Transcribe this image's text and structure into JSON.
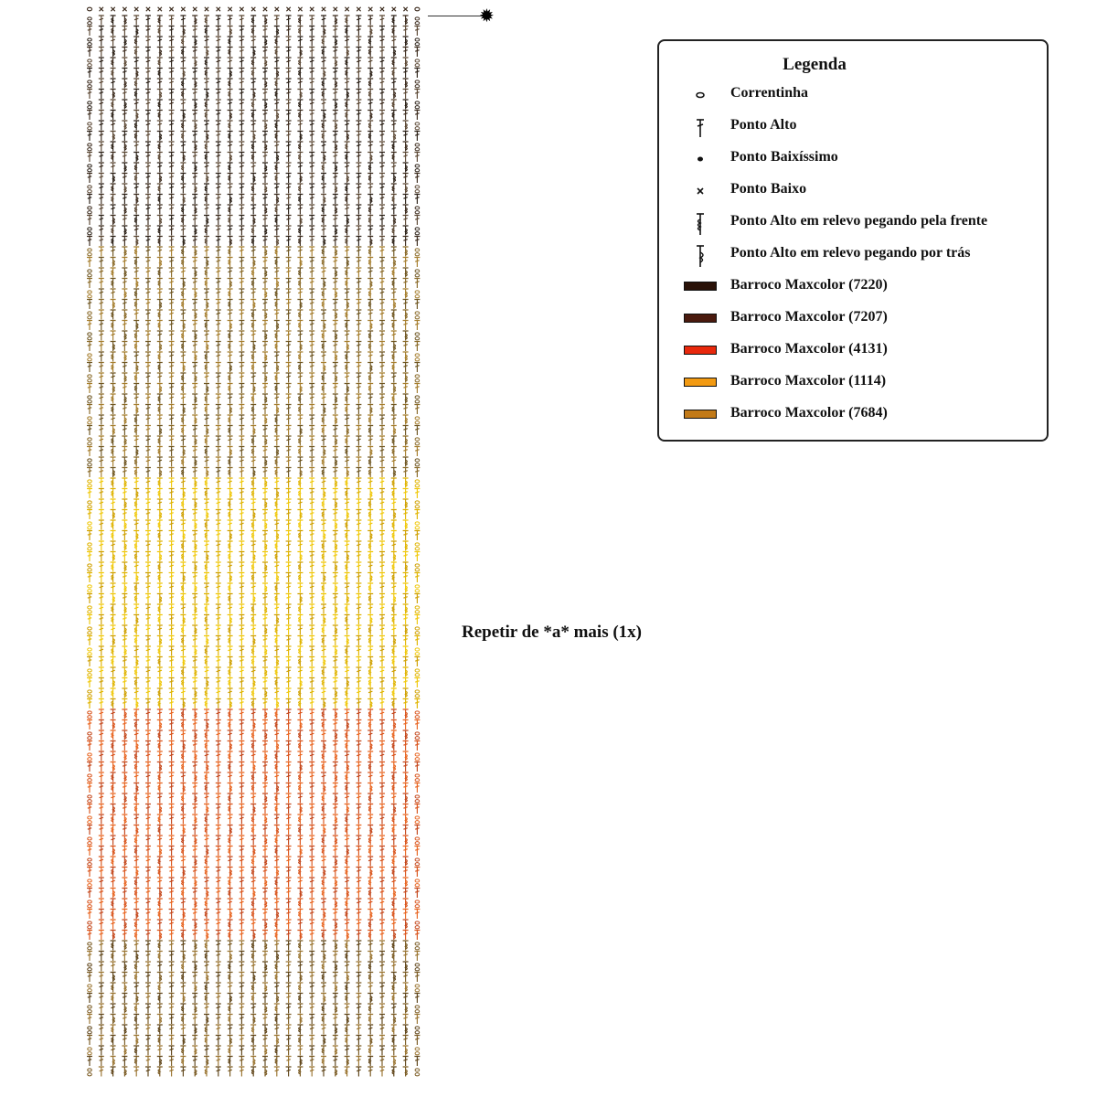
{
  "legend": {
    "title": "Legenda",
    "items": [
      {
        "label": "Correntinha",
        "icon": "chain-stitch-icon"
      },
      {
        "label": "Ponto Alto",
        "icon": "double-crochet-icon"
      },
      {
        "label": "Ponto Baixíssimo",
        "icon": "slip-stitch-icon"
      },
      {
        "label": "Ponto Baixo",
        "icon": "single-crochet-icon"
      },
      {
        "label": "Ponto Alto em relevo pegando pela frente",
        "icon": "front-post-double-crochet-icon"
      },
      {
        "label": "Ponto Alto em relevo pegando por trás",
        "icon": "back-post-double-crochet-icon"
      },
      {
        "label": "Barroco Maxcolor (7220)",
        "color": "#2a1208"
      },
      {
        "label": "Barroco Maxcolor (7207)",
        "color": "#4a1a0e"
      },
      {
        "label": "Barroco Maxcolor (4131)",
        "color": "#e8280c"
      },
      {
        "label": "Barroco Maxcolor (1114)",
        "color": "#f29a12"
      },
      {
        "label": "Barroco Maxcolor (7684)",
        "color": "#c27a18"
      }
    ]
  },
  "repeat_note": "Repetir de *a* mais (1x)",
  "start_marker": "start-marker-icon",
  "chart": {
    "columns": 29,
    "sections": [
      {
        "name": "dark",
        "rows": 22,
        "colors": [
          "#3b2a1c",
          "#5a4632",
          "#2a1f15"
        ]
      },
      {
        "name": "brown",
        "rows": 22,
        "colors": [
          "#8a6a28",
          "#a57d2c",
          "#6e5520"
        ]
      },
      {
        "name": "yellow",
        "rows": 22,
        "colors": [
          "#e0b400",
          "#f0c80a",
          "#cfa000"
        ]
      },
      {
        "name": "orange",
        "rows": 22,
        "colors": [
          "#d9531a",
          "#e8641f",
          "#c4461a"
        ]
      },
      {
        "name": "tan",
        "rows": 13,
        "colors": [
          "#7a5a22",
          "#9a7430",
          "#5f4418"
        ]
      }
    ]
  }
}
